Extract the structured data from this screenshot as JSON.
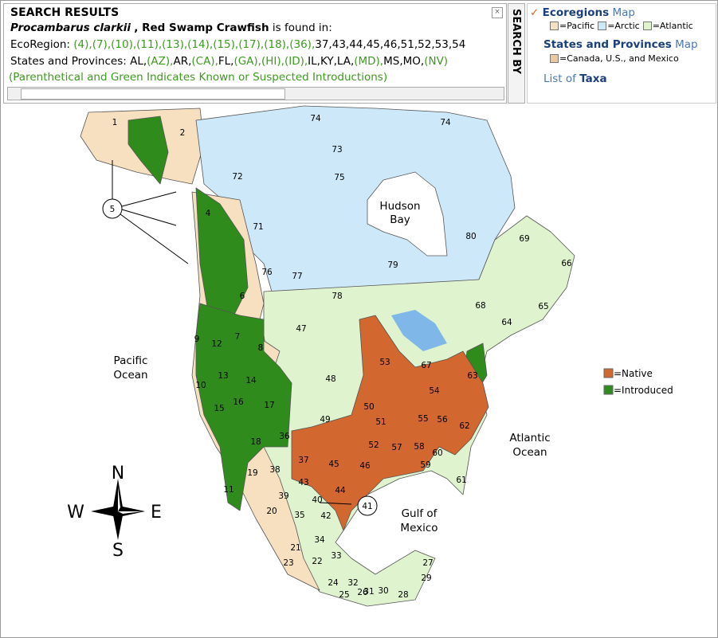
{
  "results": {
    "title": "SEARCH RESULTS",
    "species": "Procambarus clarkii",
    "common_name": ", Red Swamp Crawfish",
    "found_in": "is found in:",
    "ecoregion_label": "EcoRegion:",
    "ecoregions": [
      "(4),",
      "(7),",
      "(10),",
      "(11),",
      "(13),",
      "(14),",
      "(15),",
      "(17),",
      "(18),",
      "(36),",
      "37,",
      "43,",
      "44,",
      "45,",
      "46,",
      "51,",
      "52,",
      "53,",
      "54"
    ],
    "states_label": "States and Provinces:",
    "states": [
      "AL,",
      "(AZ),",
      "AR,",
      "(CA),",
      "FL,",
      "(GA),",
      "(HI),",
      "(ID),",
      "IL,",
      "KY,",
      "LA,",
      "(MD),",
      "MS,",
      "MO,",
      "(NV)"
    ],
    "note": "(Parenthetical and Green Indicates Known or Suspected Introductions)"
  },
  "search_by": {
    "title": "SEARCH BY",
    "ecoregions_link": "Ecoregions",
    "ecoregions_map": "Map",
    "ecoregion_keys": [
      "=Pacific",
      "=Arctic",
      "=Atlantic"
    ],
    "states_link": "States and Provinces",
    "states_map": "Map",
    "states_key": "=Canada, U.S., and Mexico",
    "list_of": "List of",
    "taxa": "Taxa"
  },
  "map": {
    "region_labels": [
      "1",
      "2",
      "74",
      "74",
      "73",
      "72",
      "75",
      "4",
      "71",
      "80",
      "69",
      "66",
      "76",
      "77",
      "79",
      "78",
      "6",
      "68",
      "65",
      "64",
      "47",
      "7",
      "9",
      "12",
      "8",
      "53",
      "67",
      "63",
      "14",
      "13",
      "10",
      "48",
      "54",
      "16",
      "15",
      "17",
      "50",
      "49",
      "51",
      "55",
      "56",
      "62",
      "18",
      "36",
      "52",
      "57",
      "58",
      "60",
      "37",
      "45",
      "46",
      "59",
      "19",
      "38",
      "43",
      "44",
      "61",
      "11",
      "39",
      "40",
      "20",
      "35",
      "42",
      "34",
      "21",
      "33",
      "23",
      "22",
      "27",
      "24",
      "32",
      "29",
      "26",
      "25",
      "31",
      "30",
      "28"
    ],
    "callouts": [
      "5",
      "41"
    ],
    "water_labels": [
      "Hudson",
      "Bay",
      "Pacific",
      "Ocean",
      "Atlantic",
      "Ocean",
      "Gulf of",
      "Mexico"
    ],
    "legend": [
      {
        "label": "=Native",
        "color": "#d2672f"
      },
      {
        "label": "=Introduced",
        "color": "#2f8c1c"
      }
    ],
    "compass": [
      "N",
      "E",
      "S",
      "W"
    ]
  }
}
